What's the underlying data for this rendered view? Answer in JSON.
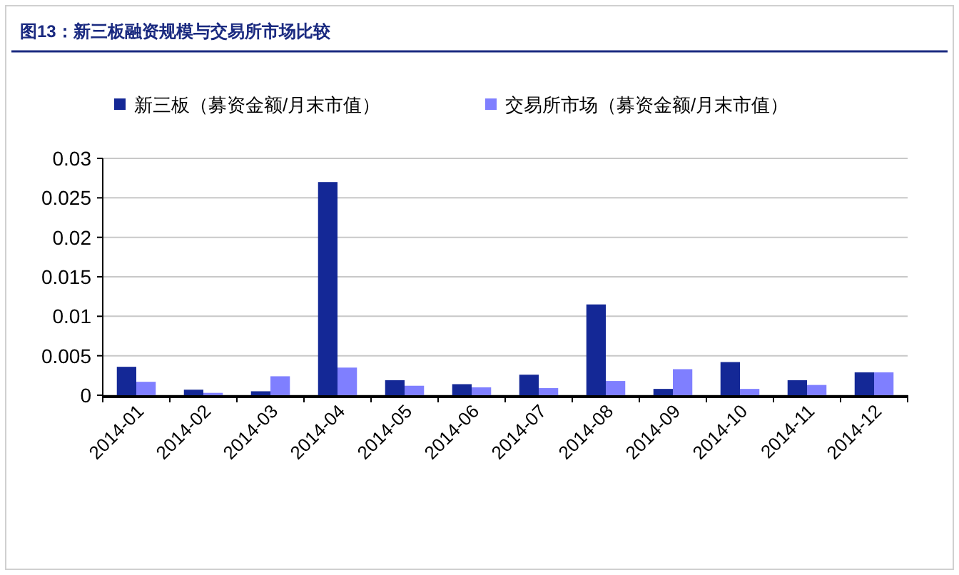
{
  "chart_data": {
    "type": "bar",
    "title": "图13：新三板融资规模与交易所市场比较",
    "categories": [
      "2014-01",
      "2014-02",
      "2014-03",
      "2014-04",
      "2014-05",
      "2014-06",
      "2014-07",
      "2014-08",
      "2014-09",
      "2014-10",
      "2014-11",
      "2014-12"
    ],
    "series": [
      {
        "name": "新三板（募资金额/月末市值）",
        "color": "#142896",
        "values": [
          0.0036,
          0.0007,
          0.0005,
          0.027,
          0.0019,
          0.0014,
          0.0026,
          0.0115,
          0.0008,
          0.0042,
          0.0019,
          0.0029
        ]
      },
      {
        "name": "交易所市场（募资金额/月末市值）",
        "color": "#7f7fff",
        "values": [
          0.0017,
          0.0003,
          0.0024,
          0.0035,
          0.0012,
          0.001,
          0.0009,
          0.0018,
          0.0033,
          0.0008,
          0.0013,
          0.0029
        ]
      }
    ],
    "ylim": [
      0,
      0.03
    ],
    "yticks": [
      0,
      0.005,
      0.01,
      0.015,
      0.02,
      0.025,
      0.03
    ],
    "grid": "y",
    "legend": "top"
  }
}
